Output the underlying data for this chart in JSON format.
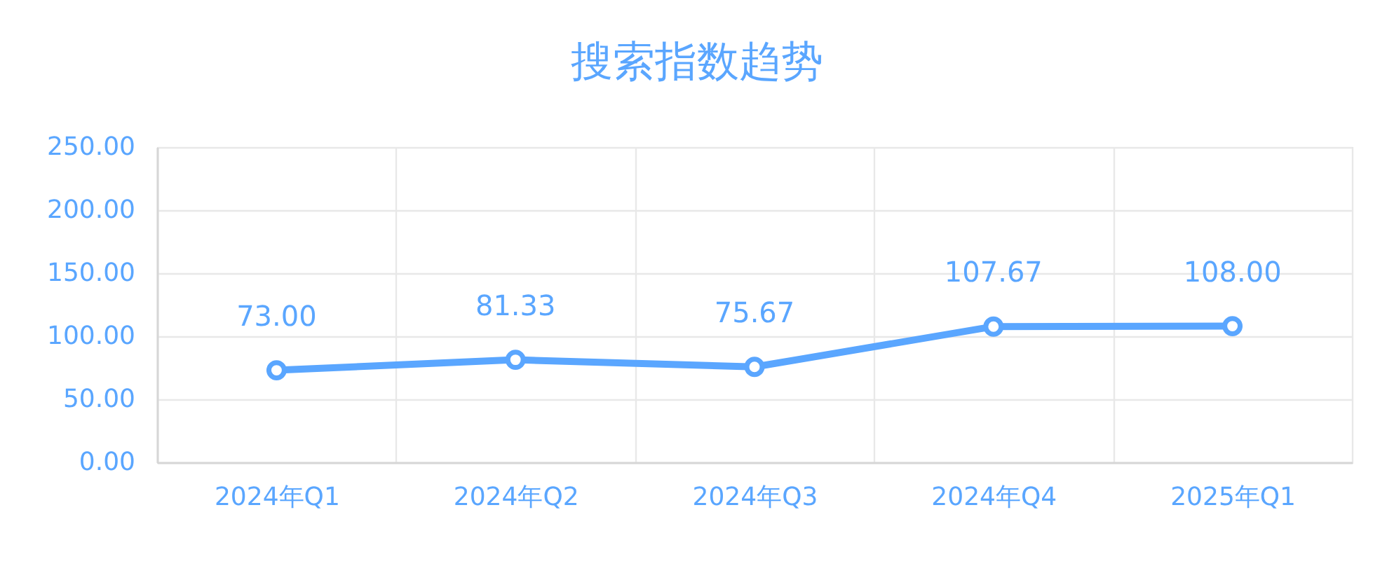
{
  "chart_data": {
    "type": "line",
    "title": "搜索指数趋势",
    "categories": [
      "2024年Q1",
      "2024年Q2",
      "2024年Q3",
      "2024年Q4",
      "2025年Q1"
    ],
    "series": [
      {
        "color": "#5aa6ff",
        "values": [
          73,
          81.33,
          75.67,
          107.67,
          108
        ],
        "value_labels": [
          "73.00",
          "81.33",
          "75.67",
          "107.67",
          "108.00"
        ]
      }
    ],
    "ylim": [
      0,
      250
    ],
    "yticks": [
      {
        "value": 0,
        "label": "0.00"
      },
      {
        "value": 50,
        "label": "50.00"
      },
      {
        "value": 100,
        "label": "100.00"
      },
      {
        "value": 150,
        "label": "150.00"
      },
      {
        "value": 200,
        "label": "200.00"
      },
      {
        "value": 250,
        "label": "250.00"
      }
    ],
    "grid": true,
    "marker": "circle",
    "line_style": "solid"
  }
}
